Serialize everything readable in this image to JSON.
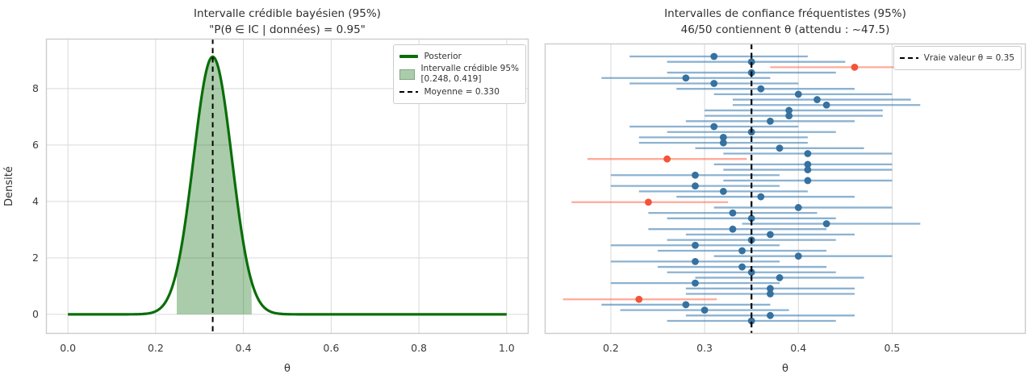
{
  "figure": {
    "background": "#ffffff",
    "grid_color": "#d9d9d9",
    "spine_color": "#cccccc",
    "text_color": "#2e2e2e"
  },
  "chart_data": [
    {
      "id": "bayesian-credible",
      "type": "area",
      "title": "Intervalle crédible bayésien (95%)",
      "subtitle": "\"P(θ ∈ IC | données) = 0.95\"",
      "xlabel": "θ",
      "ylabel": "Densité",
      "xlim": [
        -0.05,
        1.05
      ],
      "ylim": [
        -0.69,
        9.77
      ],
      "xticks": [
        "0.0",
        "0.2",
        "0.4",
        "0.6",
        "0.8",
        "1.0"
      ],
      "xtick_values": [
        0.0,
        0.2,
        0.4,
        0.6,
        0.8,
        1.0
      ],
      "yticks": [
        "0",
        "2",
        "4",
        "6",
        "8"
      ],
      "ytick_values": [
        0,
        2,
        4,
        6,
        8
      ],
      "grid": true,
      "posterior": {
        "mean": 0.33,
        "sd": 0.0436,
        "peak_density": 9.13,
        "support": [
          0.0,
          1.0
        ]
      },
      "credible_interval": {
        "low": 0.248,
        "high": 0.419,
        "level": "95%"
      },
      "mean_line": 0.33,
      "colors": {
        "line": "#0a6e0a",
        "fill": "rgba(0,100,0,0.33)",
        "fill_edge": "#7fa77f",
        "mean_dash": "#000000"
      },
      "legend": {
        "position": "upper right",
        "items": [
          {
            "label": "Posterior",
            "swatch": "line"
          },
          {
            "label": "Intervalle crédible 95%",
            "label2": "[0.248, 0.419]",
            "swatch": "patch"
          },
          {
            "label": "Moyenne = 0.330",
            "swatch": "dash"
          }
        ]
      }
    },
    {
      "id": "frequentist-intervals",
      "type": "interval-forest",
      "title": "Intervalles de confiance fréquentistes (95%)",
      "subtitle": "46/50 contiennent θ (attendu : ~47.5)",
      "xlabel": "θ",
      "xlim": [
        0.1295,
        0.6425
      ],
      "xticks": [
        "0.2",
        "0.3",
        "0.4",
        "0.5"
      ],
      "xtick_values": [
        0.2,
        0.3,
        0.4,
        0.5
      ],
      "grid": true,
      "true_theta": 0.35,
      "n_intervals": 50,
      "n_containing": 46,
      "colors": {
        "contains_line": "rgba(70,130,180,0.62)",
        "contains_dot": "#36719f",
        "miss_line": "rgba(255,99,71,0.55)",
        "miss_dot": "#f2543a",
        "true_dash": "#000000"
      },
      "legend": {
        "position": "upper right",
        "items": [
          {
            "label": "Vraie valeur θ = 0.35",
            "swatch": "dash"
          }
        ]
      },
      "intervals": [
        {
          "mean": 0.31,
          "low": 0.22,
          "high": 0.41,
          "contains": true
        },
        {
          "mean": 0.35,
          "low": 0.26,
          "high": 0.45,
          "contains": true
        },
        {
          "mean": 0.46,
          "low": 0.37,
          "high": 0.57,
          "contains": false
        },
        {
          "mean": 0.35,
          "low": 0.26,
          "high": 0.44,
          "contains": true
        },
        {
          "mean": 0.28,
          "low": 0.19,
          "high": 0.37,
          "contains": true
        },
        {
          "mean": 0.31,
          "low": 0.22,
          "high": 0.4,
          "contains": true
        },
        {
          "mean": 0.36,
          "low": 0.27,
          "high": 0.46,
          "contains": true
        },
        {
          "mean": 0.4,
          "low": 0.31,
          "high": 0.5,
          "contains": true
        },
        {
          "mean": 0.42,
          "low": 0.33,
          "high": 0.52,
          "contains": true
        },
        {
          "mean": 0.43,
          "low": 0.33,
          "high": 0.53,
          "contains": true
        },
        {
          "mean": 0.39,
          "low": 0.3,
          "high": 0.49,
          "contains": true
        },
        {
          "mean": 0.39,
          "low": 0.3,
          "high": 0.49,
          "contains": true
        },
        {
          "mean": 0.37,
          "low": 0.28,
          "high": 0.46,
          "contains": true
        },
        {
          "mean": 0.31,
          "low": 0.22,
          "high": 0.4,
          "contains": true
        },
        {
          "mean": 0.35,
          "low": 0.26,
          "high": 0.44,
          "contains": true
        },
        {
          "mean": 0.32,
          "low": 0.23,
          "high": 0.41,
          "contains": true
        },
        {
          "mean": 0.32,
          "low": 0.23,
          "high": 0.41,
          "contains": true
        },
        {
          "mean": 0.38,
          "low": 0.29,
          "high": 0.47,
          "contains": true
        },
        {
          "mean": 0.41,
          "low": 0.32,
          "high": 0.5,
          "contains": true
        },
        {
          "mean": 0.26,
          "low": 0.175,
          "high": 0.345,
          "contains": false
        },
        {
          "mean": 0.41,
          "low": 0.31,
          "high": 0.5,
          "contains": true
        },
        {
          "mean": 0.41,
          "low": 0.32,
          "high": 0.5,
          "contains": true
        },
        {
          "mean": 0.29,
          "low": 0.2,
          "high": 0.38,
          "contains": true
        },
        {
          "mean": 0.41,
          "low": 0.32,
          "high": 0.5,
          "contains": true
        },
        {
          "mean": 0.29,
          "low": 0.2,
          "high": 0.38,
          "contains": true
        },
        {
          "mean": 0.32,
          "low": 0.23,
          "high": 0.41,
          "contains": true
        },
        {
          "mean": 0.36,
          "low": 0.27,
          "high": 0.46,
          "contains": true
        },
        {
          "mean": 0.24,
          "low": 0.158,
          "high": 0.325,
          "contains": false
        },
        {
          "mean": 0.4,
          "low": 0.31,
          "high": 0.5,
          "contains": true
        },
        {
          "mean": 0.33,
          "low": 0.24,
          "high": 0.42,
          "contains": true
        },
        {
          "mean": 0.35,
          "low": 0.26,
          "high": 0.44,
          "contains": true
        },
        {
          "mean": 0.43,
          "low": 0.34,
          "high": 0.53,
          "contains": true
        },
        {
          "mean": 0.33,
          "low": 0.24,
          "high": 0.43,
          "contains": true
        },
        {
          "mean": 0.37,
          "low": 0.28,
          "high": 0.46,
          "contains": true
        },
        {
          "mean": 0.35,
          "low": 0.26,
          "high": 0.44,
          "contains": true
        },
        {
          "mean": 0.29,
          "low": 0.2,
          "high": 0.38,
          "contains": true
        },
        {
          "mean": 0.34,
          "low": 0.25,
          "high": 0.43,
          "contains": true
        },
        {
          "mean": 0.4,
          "low": 0.31,
          "high": 0.5,
          "contains": true
        },
        {
          "mean": 0.29,
          "low": 0.2,
          "high": 0.38,
          "contains": true
        },
        {
          "mean": 0.34,
          "low": 0.25,
          "high": 0.43,
          "contains": true
        },
        {
          "mean": 0.35,
          "low": 0.26,
          "high": 0.44,
          "contains": true
        },
        {
          "mean": 0.38,
          "low": 0.29,
          "high": 0.47,
          "contains": true
        },
        {
          "mean": 0.29,
          "low": 0.2,
          "high": 0.38,
          "contains": true
        },
        {
          "mean": 0.37,
          "low": 0.28,
          "high": 0.46,
          "contains": true
        },
        {
          "mean": 0.37,
          "low": 0.28,
          "high": 0.46,
          "contains": true
        },
        {
          "mean": 0.23,
          "low": 0.149,
          "high": 0.313,
          "contains": false
        },
        {
          "mean": 0.28,
          "low": 0.19,
          "high": 0.37,
          "contains": true
        },
        {
          "mean": 0.3,
          "low": 0.21,
          "high": 0.39,
          "contains": true
        },
        {
          "mean": 0.37,
          "low": 0.28,
          "high": 0.46,
          "contains": true
        },
        {
          "mean": 0.35,
          "low": 0.26,
          "high": 0.44,
          "contains": true
        }
      ]
    }
  ]
}
